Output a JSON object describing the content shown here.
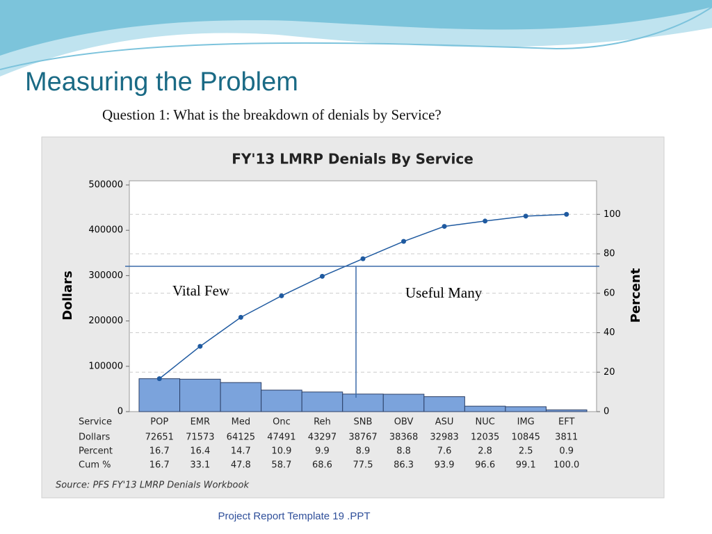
{
  "title": "Measuring the Problem",
  "subtitle": "Question 1:  What is the breakdown of denials by Service?",
  "footer": "Project Report Template 19 .PPT",
  "chart_data": {
    "type": "pareto",
    "title": "FY'13 LMRP Denials By Service",
    "x_label": "Service",
    "y_label": "Dollars",
    "y2_label": "Percent",
    "categories": [
      "POP",
      "EMR",
      "Med",
      "Onc",
      "Reh",
      "SNB",
      "OBV",
      "ASU",
      "NUC",
      "IMG",
      "EFT"
    ],
    "series": [
      {
        "name": "Dollars",
        "color": "#7ba3dc",
        "values": [
          72651,
          71573,
          64125,
          47491,
          43297,
          38767,
          38368,
          32983,
          12035,
          10845,
          3811
        ]
      },
      {
        "name": "Cum %",
        "color": "#1f5aa0",
        "axis": "y2",
        "values": [
          16.7,
          33.1,
          47.8,
          58.7,
          68.6,
          77.5,
          86.3,
          93.9,
          96.6,
          99.1,
          100
        ],
        "value_labels": [
          "16.7",
          "33.1",
          "47.8",
          "58.7",
          "68.6",
          "77.5",
          "86.3",
          "93.9",
          "96.6",
          "99.1",
          "100.0"
        ]
      }
    ],
    "percent_row": {
      "name": "Percent",
      "values": [
        16.7,
        16.4,
        14.7,
        10.9,
        9.9,
        8.9,
        8.8,
        7.6,
        2.8,
        2.5,
        0.9
      ]
    },
    "ylim": [
      0,
      500000
    ],
    "yticks": [
      0,
      100000,
      200000,
      300000,
      400000,
      500000
    ],
    "y2lim": [
      0,
      114.9
    ],
    "y2ticks": [
      0,
      20,
      40,
      60,
      80,
      100
    ],
    "grid": true,
    "annotations": [
      "Vital Few",
      "Useful Many"
    ],
    "source": "Source: PFS FY'13 LMRP Denials Workbook"
  }
}
